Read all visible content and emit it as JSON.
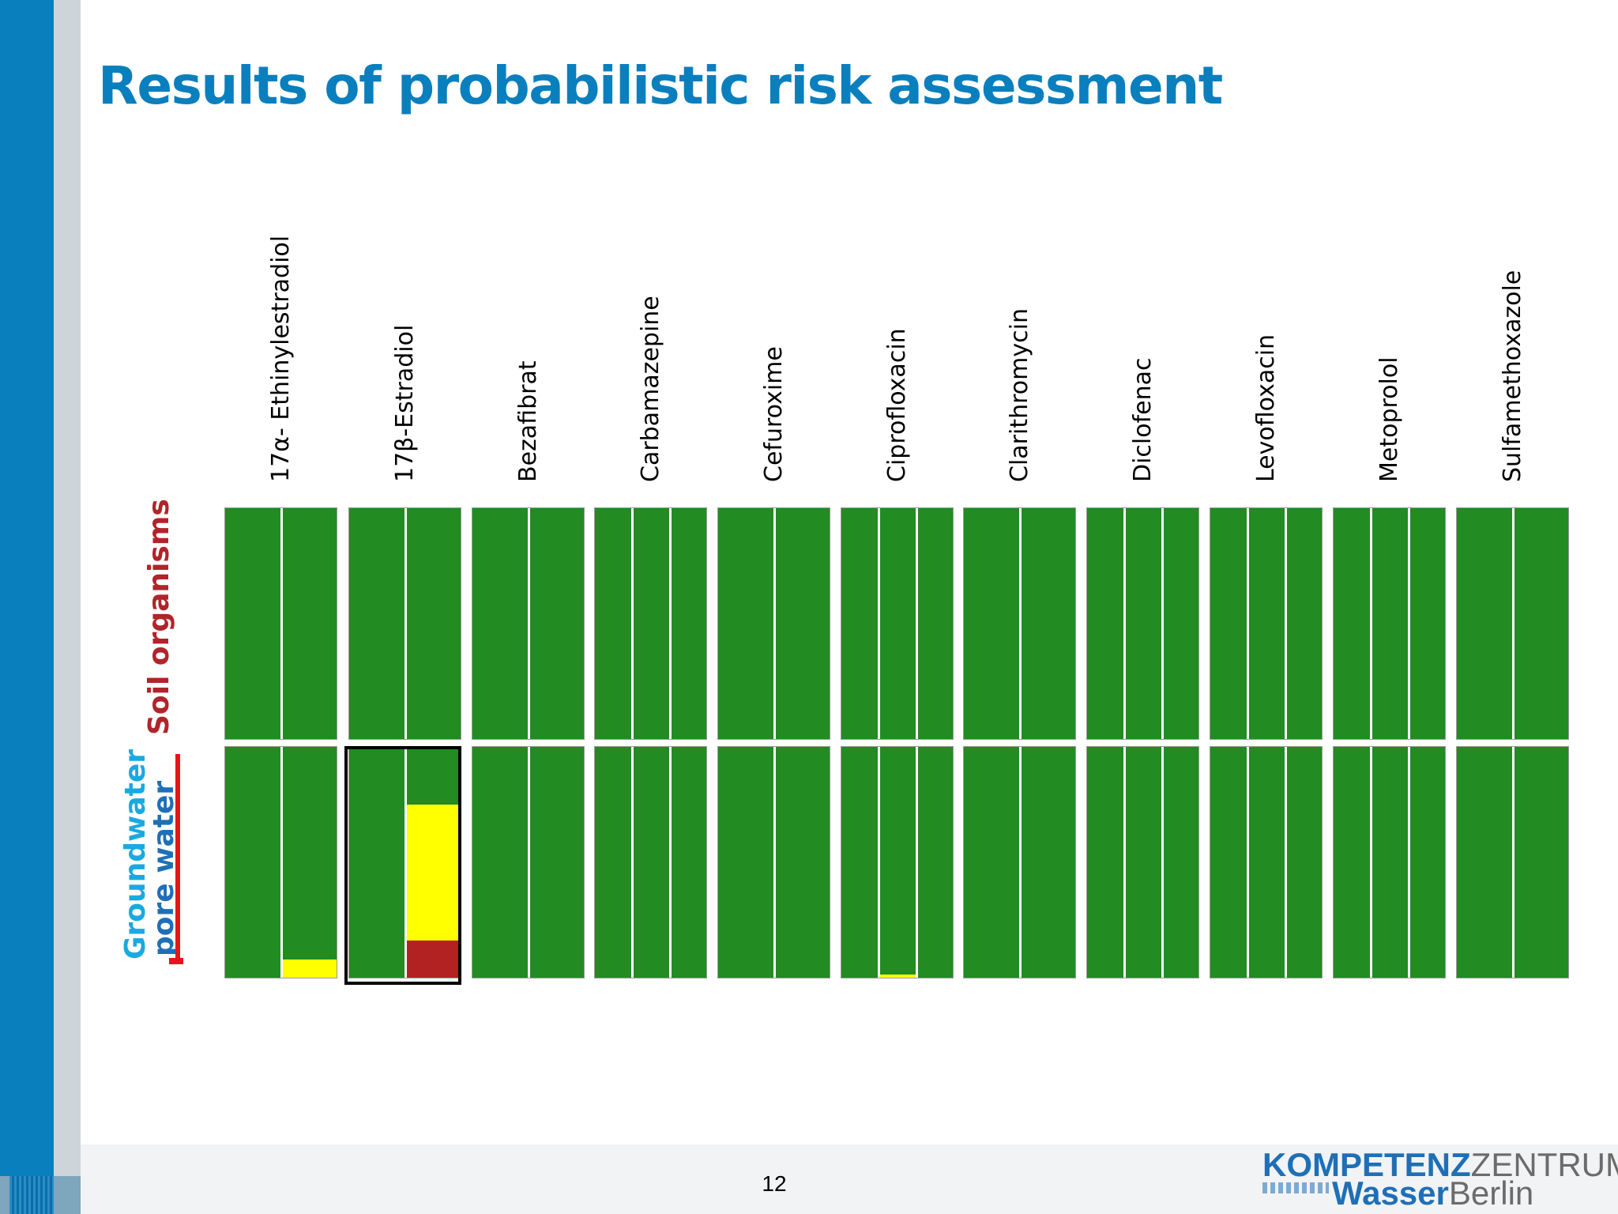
{
  "slide": {
    "title": "Results of probabilistic risk assessment",
    "page_number": "12"
  },
  "row_labels": {
    "soil": "Soil organisms",
    "groundwater": "Groundwater",
    "pore_water": "pore water"
  },
  "columns": [
    {
      "label": "17α- Ethinylestradiol",
      "stripes": 2,
      "soil": [
        [
          [
            "#228b22",
            1
          ]
        ],
        [
          [
            "#228b22",
            1
          ]
        ]
      ],
      "groundwater": [
        [
          [
            "#228b22",
            1
          ]
        ],
        [
          [
            "#228b22",
            0.92
          ],
          [
            "#ffff00",
            0.08
          ]
        ]
      ]
    },
    {
      "label": "17β-Estradiol",
      "stripes": 2,
      "soil": [
        [
          [
            "#228b22",
            1
          ]
        ],
        [
          [
            "#228b22",
            1
          ]
        ]
      ],
      "groundwater": [
        [
          [
            "#228b22",
            1
          ]
        ],
        [
          [
            "#228b22",
            0.25
          ],
          [
            "#ffff00",
            0.59
          ],
          [
            "#b22222",
            0.16
          ]
        ]
      ]
    },
    {
      "label": "Bezafibrat",
      "stripes": 2,
      "soil": [
        [
          [
            "#228b22",
            1
          ]
        ],
        [
          [
            "#228b22",
            1
          ]
        ]
      ],
      "groundwater": [
        [
          [
            "#228b22",
            1
          ]
        ],
        [
          [
            "#228b22",
            1
          ]
        ]
      ]
    },
    {
      "label": "Carbamazepine",
      "stripes": 3,
      "soil": [
        [
          [
            "#228b22",
            1
          ]
        ],
        [
          [
            "#228b22",
            1
          ]
        ],
        [
          [
            "#228b22",
            1
          ]
        ]
      ],
      "groundwater": [
        [
          [
            "#228b22",
            1
          ]
        ],
        [
          [
            "#228b22",
            1
          ]
        ],
        [
          [
            "#228b22",
            1
          ]
        ]
      ]
    },
    {
      "label": "Cefuroxime",
      "stripes": 2,
      "soil": [
        [
          [
            "#228b22",
            1
          ]
        ],
        [
          [
            "#228b22",
            1
          ]
        ]
      ],
      "groundwater": [
        [
          [
            "#228b22",
            1
          ]
        ],
        [
          [
            "#228b22",
            1
          ]
        ]
      ]
    },
    {
      "label": "Ciprofloxacin",
      "stripes": 3,
      "soil": [
        [
          [
            "#228b22",
            1
          ]
        ],
        [
          [
            "#228b22",
            1
          ]
        ],
        [
          [
            "#228b22",
            1
          ]
        ]
      ],
      "groundwater": [
        [
          [
            "#228b22",
            1
          ]
        ],
        [
          [
            "#228b22",
            0.985
          ],
          [
            "#ffff00",
            0.015
          ]
        ],
        [
          [
            "#228b22",
            1
          ]
        ]
      ]
    },
    {
      "label": "Clarithromycin",
      "stripes": 2,
      "soil": [
        [
          [
            "#228b22",
            1
          ]
        ],
        [
          [
            "#228b22",
            1
          ]
        ]
      ],
      "groundwater": [
        [
          [
            "#228b22",
            1
          ]
        ],
        [
          [
            "#228b22",
            1
          ]
        ]
      ]
    },
    {
      "label": "Diclofenac",
      "stripes": 3,
      "soil": [
        [
          [
            "#228b22",
            1
          ]
        ],
        [
          [
            "#228b22",
            1
          ]
        ],
        [
          [
            "#228b22",
            1
          ]
        ]
      ],
      "groundwater": [
        [
          [
            "#228b22",
            1
          ]
        ],
        [
          [
            "#228b22",
            1
          ]
        ],
        [
          [
            "#228b22",
            1
          ]
        ]
      ]
    },
    {
      "label": "Levofloxacin",
      "stripes": 3,
      "soil": [
        [
          [
            "#228b22",
            1
          ]
        ],
        [
          [
            "#228b22",
            1
          ]
        ],
        [
          [
            "#228b22",
            1
          ]
        ]
      ],
      "groundwater": [
        [
          [
            "#228b22",
            1
          ]
        ],
        [
          [
            "#228b22",
            1
          ]
        ],
        [
          [
            "#228b22",
            1
          ]
        ]
      ]
    },
    {
      "label": "Metoprolol",
      "stripes": 3,
      "soil": [
        [
          [
            "#228b22",
            1
          ]
        ],
        [
          [
            "#228b22",
            1
          ]
        ],
        [
          [
            "#228b22",
            1
          ]
        ]
      ],
      "groundwater": [
        [
          [
            "#228b22",
            1
          ]
        ],
        [
          [
            "#228b22",
            1
          ]
        ],
        [
          [
            "#228b22",
            1
          ]
        ]
      ]
    },
    {
      "label": "Sulfamethoxazole",
      "stripes": 2,
      "soil": [
        [
          [
            "#228b22",
            1
          ]
        ],
        [
          [
            "#228b22",
            1
          ]
        ]
      ],
      "groundwater": [
        [
          [
            "#228b22",
            1
          ]
        ],
        [
          [
            "#228b22",
            1
          ]
        ]
      ]
    }
  ],
  "colors": {
    "title_blue": "#0a7fbe",
    "green": "#228b22",
    "yellow": "#ffff00",
    "red": "#b22222",
    "soil_label": "#b0242a",
    "groundwater_label": "#1aa9e0",
    "strike_red": "#e8141b"
  },
  "logo": {
    "word1_bold": "KOMPETENZ",
    "word1_thin": "ZENTRUM",
    "word2_bold": "Wasser",
    "word2_thin": "Berlin"
  }
}
